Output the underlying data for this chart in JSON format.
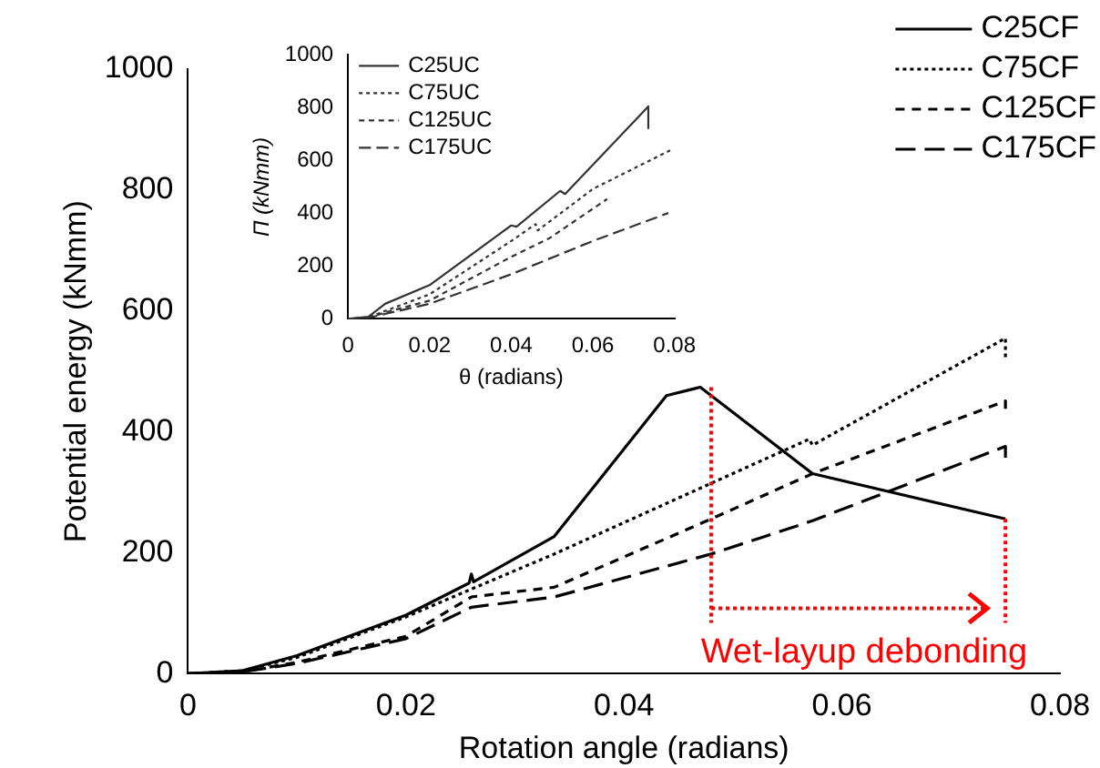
{
  "chart_data": [
    {
      "type": "line",
      "xlabel": "Rotation angle (radians)",
      "ylabel": "Potential energy (kNmm)",
      "xlim": [
        0,
        0.08
      ],
      "xticks": [
        0,
        0.02,
        0.04,
        0.06,
        0.08
      ],
      "ylim": [
        0,
        1000
      ],
      "yticks": [
        0,
        200,
        400,
        600,
        800,
        1000
      ],
      "legend": "top right",
      "grid": false,
      "marker": "none",
      "series": [
        {
          "name": "C25CF",
          "color": "#000000",
          "line_style": "solid",
          "x": [
            0,
            0.005,
            0.01,
            0.02,
            0.0258,
            0.026,
            0.0262,
            0.0336,
            0.0439,
            0.047,
            0.0573,
            0.075
          ],
          "values": [
            0,
            5,
            30,
            97,
            150,
            165,
            152,
            227,
            460,
            474,
            331,
            256
          ]
        },
        {
          "name": "C75CF",
          "color": "#000000",
          "line_style": "dotted",
          "x": [
            0,
            0.005,
            0.01,
            0.02,
            0.026,
            0.0336,
            0.048,
            0.057,
            0.0573,
            0.075,
            0.075
          ],
          "values": [
            0,
            5,
            27,
            94,
            140,
            198,
            315,
            388,
            378,
            555,
            519
          ]
        },
        {
          "name": "C125CF",
          "color": "#000000",
          "line_style": "dashed",
          "x": [
            0,
            0.005,
            0.01,
            0.02,
            0.026,
            0.0336,
            0.048,
            0.0573,
            0.075,
            0.075
          ],
          "values": [
            0,
            3,
            19,
            62,
            127,
            143,
            256,
            331,
            451,
            432
          ]
        },
        {
          "name": "C175CF",
          "color": "#000000",
          "line_style": "dashed",
          "x": [
            0,
            0.005,
            0.01,
            0.02,
            0.026,
            0.0336,
            0.048,
            0.0573,
            0.075,
            0.075
          ],
          "values": [
            0,
            3,
            17,
            58,
            110,
            127,
            198,
            253,
            376,
            354
          ]
        }
      ],
      "annotations": [
        {
          "text": "Wet-layup debonding",
          "x": 0.048,
          "y": 474
        }
      ]
    },
    {
      "type": "line",
      "xlabel": "θ (radians)",
      "ylabel": "Π (kNmm)",
      "xlim": [
        0,
        0.08
      ],
      "xticks": [
        0,
        0.02,
        0.04,
        0.06,
        0.08
      ],
      "ylim": [
        0,
        1000
      ],
      "yticks": [
        0,
        200,
        400,
        600,
        800,
        1000
      ],
      "legend": "top left",
      "grid": false,
      "marker": "none",
      "series": [
        {
          "name": "C25UC",
          "color": "#333333",
          "line_style": "solid",
          "x": [
            0,
            0.005,
            0.0091,
            0.02,
            0.04,
            0.0413,
            0.052,
            0.0532,
            0.0736,
            0.0736
          ],
          "values": [
            0,
            8,
            57,
            128,
            354,
            349,
            485,
            473,
            805,
            722
          ]
        },
        {
          "name": "C75UC",
          "color": "#333333",
          "line_style": "dotted",
          "x": [
            0,
            0.005,
            0.01,
            0.02,
            0.04,
            0.046,
            0.0465,
            0.06,
            0.079
          ],
          "values": [
            0,
            6,
            35,
            93,
            295,
            359,
            335,
            492,
            639
          ]
        },
        {
          "name": "C125UC",
          "color": "#333333",
          "line_style": "dashed",
          "x": [
            0,
            0.005,
            0.01,
            0.02,
            0.04,
            0.0494,
            0.0635
          ],
          "values": [
            0,
            5,
            28,
            69,
            235,
            306,
            454
          ]
        },
        {
          "name": "C175UC",
          "color": "#333333",
          "line_style": "dashed",
          "x": [
            0,
            0.005,
            0.01,
            0.02,
            0.04,
            0.06,
            0.0785
          ],
          "values": [
            0,
            4,
            22,
            57,
            169,
            295,
            401
          ]
        }
      ]
    }
  ]
}
